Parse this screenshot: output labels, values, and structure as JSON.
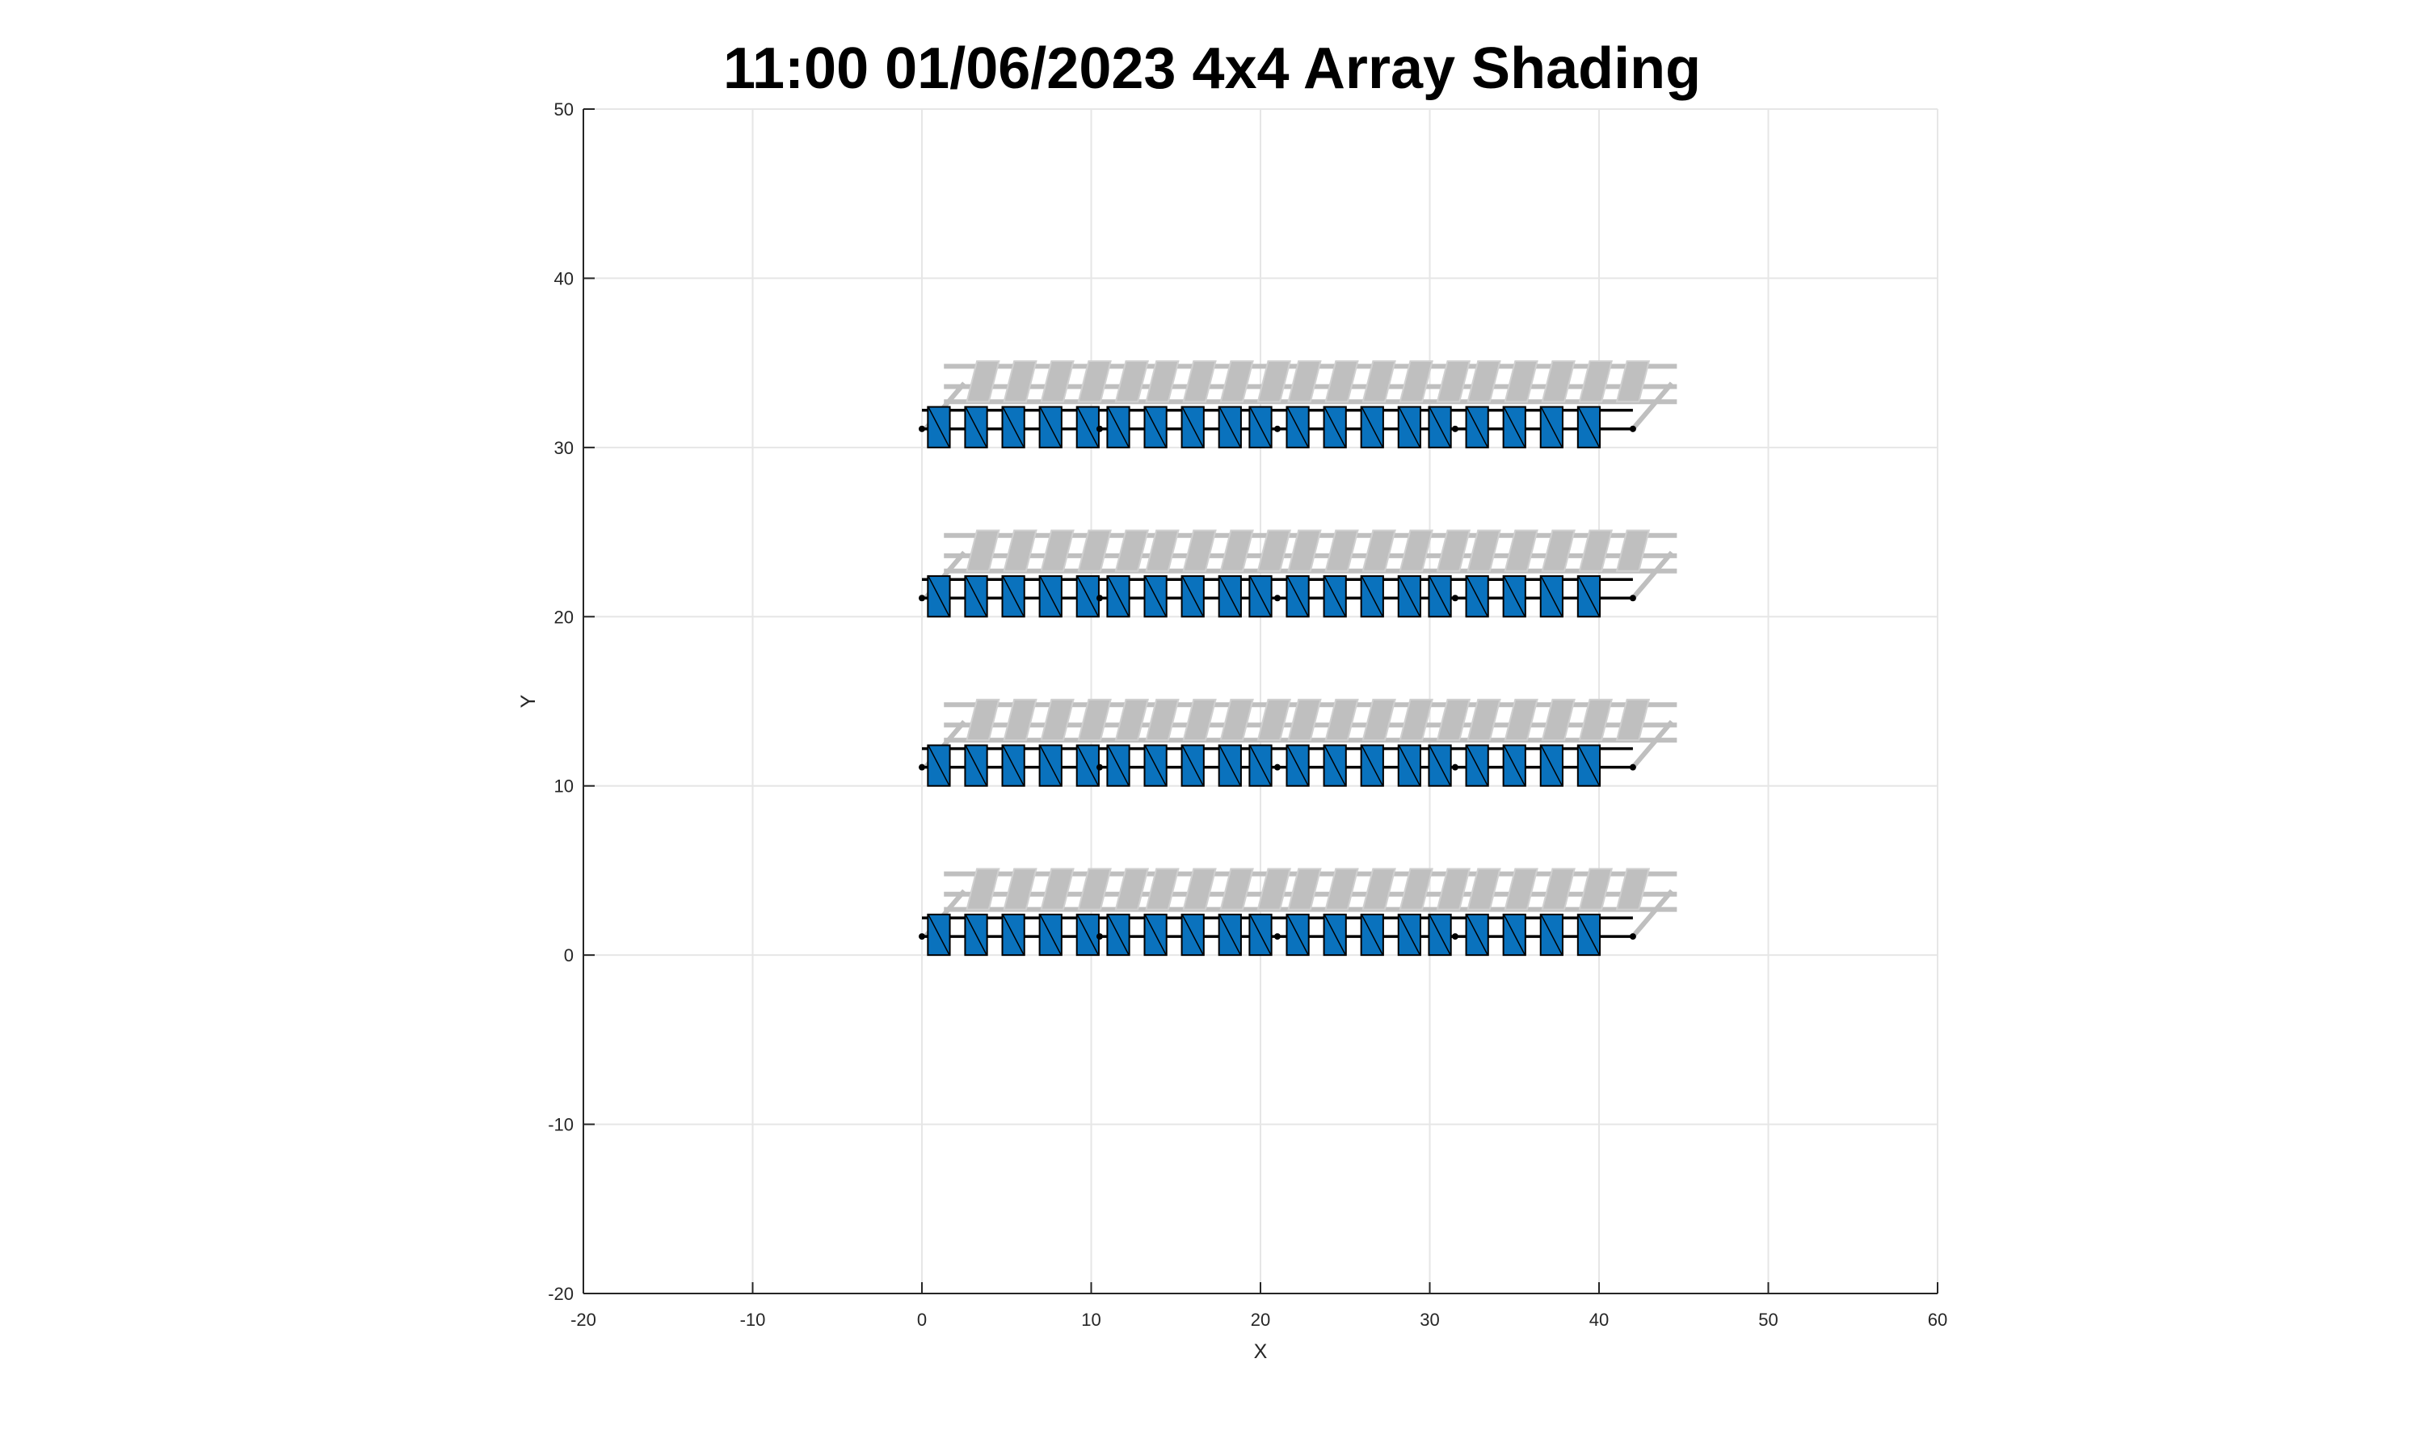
{
  "chart_data": {
    "type": "scatter",
    "title": "11:00 01/06/2023 4x4 Array Shading",
    "xlabel": "X",
    "ylabel": "Y",
    "xlim": [
      -20,
      60
    ],
    "ylim": [
      -20,
      50
    ],
    "xticks": [
      -20,
      -10,
      0,
      10,
      20,
      30,
      40,
      50,
      60
    ],
    "yticks": [
      -20,
      -10,
      0,
      10,
      20,
      30,
      40,
      50
    ],
    "grid": true,
    "colors": {
      "module_fill": "#0a72bd",
      "module_edge": "#000000",
      "shadow_fill": "#bfbfbf",
      "grid": "#e6e6e6",
      "axis": "#262626"
    },
    "array_rows_y": [
      0,
      10,
      20,
      30
    ],
    "module_x_starts": [
      0.35,
      2.55,
      4.75,
      6.95,
      9.15,
      10.95,
      13.15,
      15.35,
      17.55,
      19.35,
      21.55,
      23.75,
      25.95,
      28.15,
      29.95,
      32.15,
      34.35,
      36.55,
      38.75
    ],
    "module_width": 1.3,
    "module_height": 2.4,
    "rail_y_offsets": [
      1.1,
      2.2
    ],
    "rail_x_range": [
      0,
      42
    ],
    "shadow_offset": [
      2.3,
      2.7
    ],
    "shadow_x_range": [
      1.3,
      44.6
    ]
  }
}
